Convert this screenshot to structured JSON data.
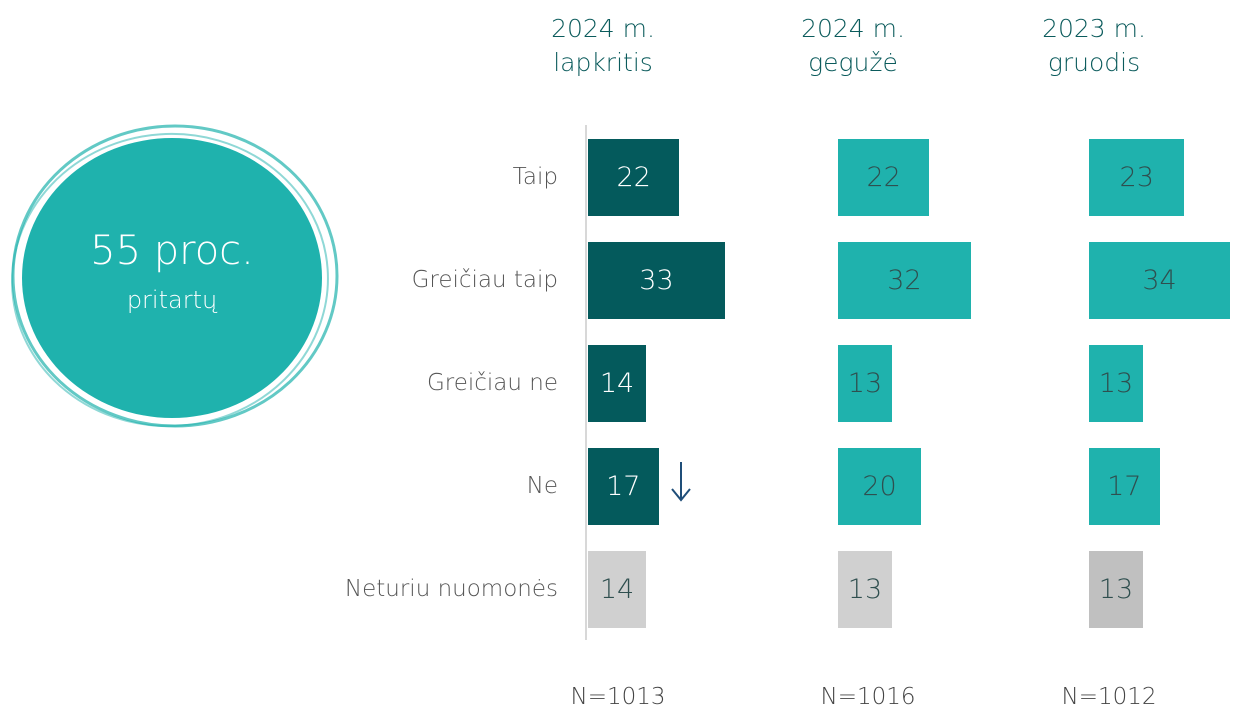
{
  "chart_data": {
    "type": "bar",
    "orientation": "horizontal",
    "annotation": {
      "headline": "55 proc.",
      "subline": "pritartų",
      "color": "#1fb2ad"
    },
    "categories": [
      "Taip",
      "Greičiau taip",
      "Greičiau ne",
      "Ne",
      "Neturiu nuomonės"
    ],
    "series": [
      {
        "name": "2024 m. lapkritis",
        "sample": "N=1013",
        "values": [
          22,
          33,
          14,
          17,
          14
        ],
        "colors": [
          "#045a5c",
          "#045a5c",
          "#045a5c",
          "#045a5c",
          "#d0d0d0"
        ]
      },
      {
        "name": "2024 m. gegužė",
        "sample": "N=1016",
        "values": [
          22,
          32,
          13,
          20,
          13
        ],
        "colors": [
          "#1fb2ad",
          "#1fb2ad",
          "#1fb2ad",
          "#1fb2ad",
          "#d0d0d0"
        ]
      },
      {
        "name": "2023 m. gruodis",
        "sample": "N=1012",
        "values": [
          23,
          34,
          13,
          17,
          13
        ],
        "colors": [
          "#1fb2ad",
          "#1fb2ad",
          "#1fb2ad",
          "#1fb2ad",
          "#c0c0c0"
        ]
      }
    ]
  }
}
